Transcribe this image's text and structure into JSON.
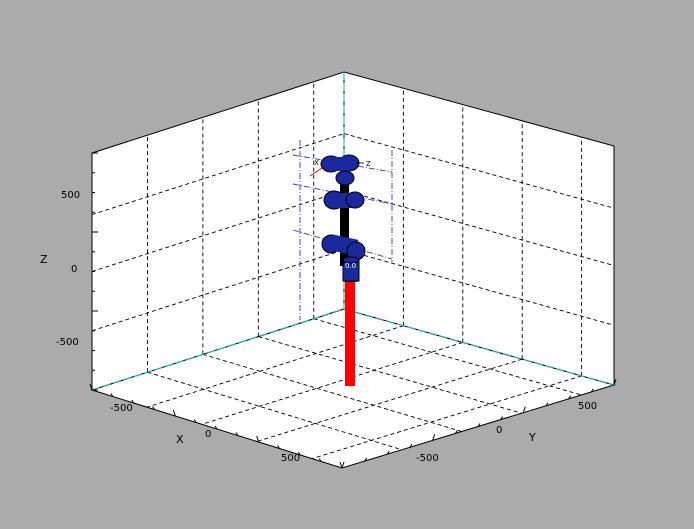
{
  "colors": {
    "window_background": "#ababab",
    "pane_fill": "#ffffff",
    "grid": "#000000",
    "origin_lines": "#00cccc",
    "robot_body": "#000000",
    "robot_joint": "#1a2a9e",
    "joint_axes": "#2a3ad0",
    "base_pedestal": "#ff0000"
  },
  "axes": {
    "x_label": "X",
    "y_label": "Y",
    "z_label": "Z",
    "x_ticks": [
      "-500",
      "0",
      "500"
    ],
    "y_ticks": [
      "-500",
      "0",
      "500"
    ],
    "z_ticks": [
      "500",
      "0",
      "-500"
    ]
  },
  "frame_labels": {
    "x": "X",
    "z": "Z",
    "joint": "0.0"
  },
  "robot": {
    "type": "serial manipulator",
    "joints": 4,
    "shown_with_joint_axes": true
  }
}
